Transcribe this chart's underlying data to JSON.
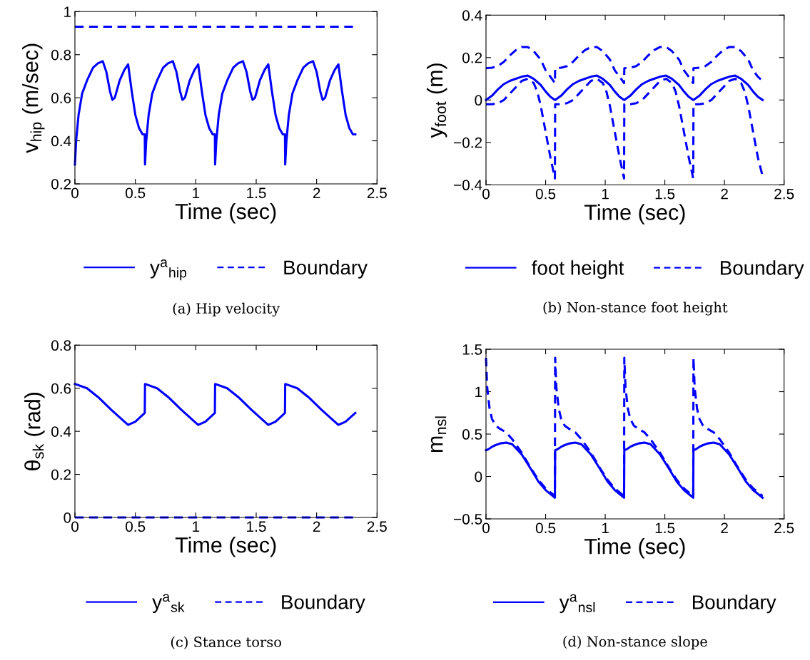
{
  "chart_data": [
    {
      "type": "line",
      "title": "(a) Hip velocity",
      "xlabel": "Time (sec)",
      "ylabel": "v$_{hip}$ (m/sec)",
      "xlim": [
        0,
        2.5
      ],
      "xticks": [
        0,
        0.5,
        1,
        1.5,
        2,
        2.5
      ],
      "ylim": [
        0.2,
        1
      ],
      "yticks": [
        0.2,
        0.4,
        0.6,
        0.8,
        1
      ],
      "grid": false,
      "legend": "bottom",
      "marker": "none",
      "series": [
        {
          "name": "y$^{a}$$_{hip}$",
          "color": "#0000ff",
          "line_style": "solid",
          "x": [
            0,
            0.01,
            0.03,
            0.06,
            0.1,
            0.15,
            0.19,
            0.23,
            0.26,
            0.29,
            0.31,
            0.33,
            0.37,
            0.41,
            0.44,
            0.47,
            0.5,
            0.53,
            0.56,
            0.578,
            0.58,
            0.59,
            0.61,
            0.64,
            0.68,
            0.73,
            0.77,
            0.81,
            0.84,
            0.87,
            0.89,
            0.91,
            0.95,
            0.99,
            1.02,
            1.05,
            1.08,
            1.11,
            1.14,
            1.158,
            1.16,
            1.17,
            1.19,
            1.22,
            1.26,
            1.31,
            1.35,
            1.39,
            1.42,
            1.45,
            1.47,
            1.49,
            1.53,
            1.57,
            1.6,
            1.63,
            1.66,
            1.69,
            1.72,
            1.738,
            1.74,
            1.75,
            1.77,
            1.8,
            1.84,
            1.89,
            1.93,
            1.97,
            2.0,
            2.03,
            2.05,
            2.07,
            2.11,
            2.15,
            2.18,
            2.21,
            2.24,
            2.27,
            2.3,
            2.32
          ],
          "values": [
            0.29,
            0.4,
            0.52,
            0.62,
            0.68,
            0.74,
            0.76,
            0.77,
            0.72,
            0.63,
            0.59,
            0.6,
            0.68,
            0.73,
            0.755,
            0.63,
            0.52,
            0.46,
            0.43,
            0.43,
            0.29,
            0.4,
            0.52,
            0.62,
            0.68,
            0.74,
            0.76,
            0.77,
            0.72,
            0.63,
            0.59,
            0.6,
            0.68,
            0.73,
            0.755,
            0.63,
            0.52,
            0.46,
            0.43,
            0.43,
            0.29,
            0.4,
            0.52,
            0.62,
            0.68,
            0.74,
            0.76,
            0.77,
            0.72,
            0.63,
            0.59,
            0.6,
            0.68,
            0.73,
            0.755,
            0.63,
            0.52,
            0.46,
            0.43,
            0.43,
            0.29,
            0.4,
            0.52,
            0.62,
            0.68,
            0.74,
            0.76,
            0.77,
            0.72,
            0.63,
            0.59,
            0.6,
            0.68,
            0.73,
            0.755,
            0.63,
            0.52,
            0.46,
            0.43,
            0.43
          ]
        },
        {
          "name": "Boundary",
          "color": "#0000ff",
          "line_style": "dashed",
          "x": [
            0,
            2.32
          ],
          "values": [
            0.93,
            0.93
          ]
        }
      ]
    },
    {
      "type": "line",
      "title": "(b) Non-stance foot height",
      "xlabel": "Time (sec)",
      "ylabel": "y$_{foot}$ (m)",
      "xlim": [
        0,
        2.5
      ],
      "xticks": [
        0,
        0.5,
        1,
        1.5,
        2,
        2.5
      ],
      "ylim": [
        -0.4,
        0.4
      ],
      "yticks": [
        {
          "value": -0.4,
          "label": "−0.4"
        },
        {
          "value": -0.2,
          "label": "−0.2"
        },
        0,
        0.2,
        0.4
      ],
      "grid": false,
      "legend": "bottom",
      "marker": "none",
      "x": [
        0,
        0.05,
        0.1,
        0.15,
        0.2,
        0.25,
        0.3,
        0.35,
        0.4,
        0.43,
        0.46,
        0.5,
        0.54,
        0.578,
        0.58,
        0.63,
        0.68,
        0.73,
        0.78,
        0.83,
        0.88,
        0.93,
        0.98,
        1.01,
        1.04,
        1.08,
        1.12,
        1.158,
        1.16,
        1.21,
        1.26,
        1.31,
        1.36,
        1.41,
        1.46,
        1.51,
        1.56,
        1.59,
        1.62,
        1.66,
        1.7,
        1.738,
        1.74,
        1.79,
        1.84,
        1.89,
        1.94,
        1.99,
        2.04,
        2.09,
        2.14,
        2.17,
        2.2,
        2.24,
        2.28,
        2.32
      ],
      "series": [
        {
          "name": "foot height",
          "color": "#0000ff",
          "line_style": "solid",
          "values": [
            0,
            0.02,
            0.05,
            0.075,
            0.09,
            0.1,
            0.11,
            0.115,
            0.1,
            0.085,
            0.07,
            0.04,
            0.015,
            0,
            0,
            0.02,
            0.05,
            0.075,
            0.09,
            0.1,
            0.11,
            0.115,
            0.1,
            0.085,
            0.07,
            0.04,
            0.015,
            0,
            0,
            0.02,
            0.05,
            0.075,
            0.09,
            0.1,
            0.11,
            0.115,
            0.1,
            0.085,
            0.07,
            0.04,
            0.015,
            0,
            0,
            0.02,
            0.05,
            0.075,
            0.09,
            0.1,
            0.11,
            0.115,
            0.1,
            0.085,
            0.07,
            0.04,
            0.015,
            0
          ]
        },
        {
          "name": "Boundary",
          "color": "#0000ff",
          "line_style": "dashed",
          "values": [
            0.15,
            0.152,
            0.16,
            0.18,
            0.21,
            0.235,
            0.25,
            0.25,
            0.23,
            0.21,
            0.19,
            0.14,
            0.11,
            0.08,
            0.15,
            0.152,
            0.16,
            0.18,
            0.21,
            0.235,
            0.25,
            0.25,
            0.23,
            0.21,
            0.19,
            0.14,
            0.11,
            0.08,
            0.15,
            0.152,
            0.16,
            0.18,
            0.21,
            0.235,
            0.25,
            0.25,
            0.23,
            0.21,
            0.19,
            0.14,
            0.11,
            0.08,
            0.15,
            0.152,
            0.16,
            0.18,
            0.21,
            0.235,
            0.25,
            0.25,
            0.23,
            0.21,
            0.19,
            0.14,
            0.11,
            0.09
          ]
        },
        {
          "color": "#0000ff",
          "line_style": "dashed",
          "values": [
            -0.02,
            -0.02,
            -0.015,
            0,
            0.03,
            0.06,
            0.09,
            0.1,
            0.08,
            0.04,
            -0.03,
            -0.15,
            -0.27,
            -0.37,
            -0.02,
            -0.02,
            -0.015,
            0,
            0.03,
            0.06,
            0.09,
            0.1,
            0.08,
            0.04,
            -0.03,
            -0.15,
            -0.27,
            -0.37,
            -0.02,
            -0.02,
            -0.015,
            0,
            0.03,
            0.06,
            0.09,
            0.1,
            0.08,
            0.04,
            -0.03,
            -0.15,
            -0.27,
            -0.37,
            -0.02,
            -0.02,
            -0.015,
            0,
            0.03,
            0.06,
            0.09,
            0.1,
            0.08,
            0.04,
            -0.03,
            -0.15,
            -0.27,
            -0.36
          ]
        }
      ]
    },
    {
      "type": "line",
      "title": "(c) Stance torso",
      "xlabel": "Time (sec)",
      "ylabel": "θ$_{sk}$ (rad)",
      "xlim": [
        0,
        2.5
      ],
      "xticks": [
        0,
        0.5,
        1,
        1.5,
        2,
        2.5
      ],
      "ylim": [
        0,
        0.8
      ],
      "yticks": [
        0,
        0.2,
        0.4,
        0.6,
        0.8
      ],
      "grid": false,
      "legend": "bottom",
      "marker": "none",
      "series": [
        {
          "name": "y$^{a}$$_{sk}$",
          "color": "#0000ff",
          "line_style": "solid",
          "x": [
            0,
            0.1,
            0.2,
            0.3,
            0.4,
            0.44,
            0.5,
            0.578,
            0.58,
            0.68,
            0.78,
            0.88,
            0.98,
            1.02,
            1.08,
            1.158,
            1.16,
            1.26,
            1.36,
            1.46,
            1.56,
            1.6,
            1.66,
            1.738,
            1.74,
            1.84,
            1.94,
            2.04,
            2.14,
            2.18,
            2.24,
            2.32
          ],
          "values": [
            0.62,
            0.6,
            0.555,
            0.5,
            0.45,
            0.43,
            0.445,
            0.485,
            0.62,
            0.6,
            0.555,
            0.5,
            0.45,
            0.43,
            0.445,
            0.485,
            0.62,
            0.6,
            0.555,
            0.5,
            0.45,
            0.43,
            0.445,
            0.485,
            0.62,
            0.6,
            0.555,
            0.5,
            0.45,
            0.43,
            0.445,
            0.485
          ]
        },
        {
          "name": "Boundary",
          "color": "#0000ff",
          "line_style": "dashed",
          "x": [
            0,
            2.32
          ],
          "values": [
            0,
            0
          ]
        }
      ]
    },
    {
      "type": "line",
      "title": "(d) Non-stance slope",
      "xlabel": "Time (sec)",
      "ylabel": "m$_{nsl}$",
      "xlim": [
        0,
        2.5
      ],
      "xticks": [
        0,
        0.5,
        1,
        1.5,
        2,
        2.5
      ],
      "ylim": [
        -0.5,
        1.5
      ],
      "yticks": [
        {
          "value": -0.5,
          "label": "−0.5"
        },
        0,
        0.5,
        1,
        1.5
      ],
      "grid": false,
      "legend": "bottom",
      "marker": "none",
      "x": [
        0,
        0.01,
        0.03,
        0.05,
        0.08,
        0.12,
        0.17,
        0.22,
        0.3,
        0.38,
        0.44,
        0.5,
        0.578,
        0.58,
        0.59,
        0.61,
        0.63,
        0.66,
        0.7,
        0.75,
        0.8,
        0.88,
        0.96,
        1.02,
        1.08,
        1.158,
        1.16,
        1.17,
        1.19,
        1.21,
        1.24,
        1.28,
        1.33,
        1.38,
        1.46,
        1.54,
        1.6,
        1.66,
        1.738,
        1.74,
        1.75,
        1.77,
        1.79,
        1.82,
        1.86,
        1.91,
        1.96,
        2.04,
        2.12,
        2.18,
        2.24,
        2.32
      ],
      "series": [
        {
          "name": "y$^{a}$$_{nsl}$",
          "color": "#0000ff",
          "line_style": "solid",
          "values": [
            0.31,
            0.315,
            0.33,
            0.35,
            0.37,
            0.39,
            0.4,
            0.38,
            0.26,
            0.08,
            -0.06,
            -0.16,
            -0.25,
            0.31,
            0.315,
            0.33,
            0.35,
            0.37,
            0.39,
            0.4,
            0.38,
            0.26,
            0.08,
            -0.06,
            -0.16,
            -0.25,
            0.31,
            0.315,
            0.33,
            0.35,
            0.37,
            0.39,
            0.4,
            0.38,
            0.26,
            0.08,
            -0.06,
            -0.16,
            -0.25,
            0.31,
            0.315,
            0.33,
            0.35,
            0.37,
            0.39,
            0.4,
            0.38,
            0.26,
            0.08,
            -0.06,
            -0.16,
            -0.25
          ]
        },
        {
          "name": "Boundary",
          "color": "#0000ff",
          "line_style": "dashed",
          "values": [
            1.4,
            1.05,
            0.8,
            0.68,
            0.6,
            0.56,
            0.52,
            0.44,
            0.28,
            0.09,
            -0.04,
            -0.14,
            -0.23,
            1.4,
            1.05,
            0.8,
            0.68,
            0.6,
            0.56,
            0.52,
            0.44,
            0.28,
            0.09,
            -0.04,
            -0.14,
            -0.23,
            1.4,
            1.05,
            0.8,
            0.68,
            0.6,
            0.56,
            0.52,
            0.44,
            0.28,
            0.09,
            -0.04,
            -0.14,
            -0.23,
            1.4,
            1.05,
            0.8,
            0.68,
            0.6,
            0.56,
            0.52,
            0.44,
            0.28,
            0.09,
            -0.04,
            -0.14,
            -0.23
          ]
        }
      ]
    }
  ]
}
